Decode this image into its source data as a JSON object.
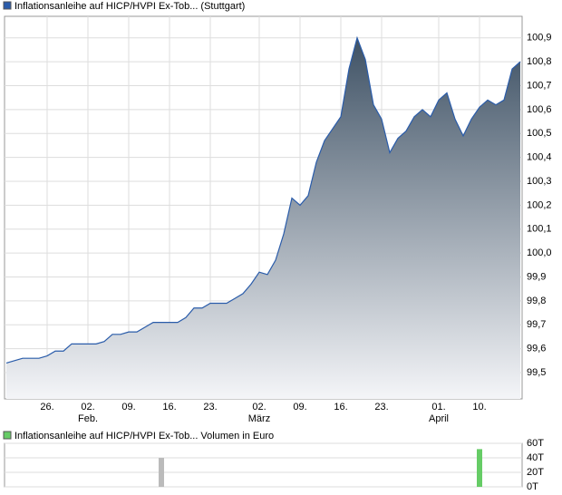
{
  "chart_data": [
    {
      "type": "area",
      "title": "Inflationsanleihe auf HICP/HVPI Ex-Tob... (Stuttgart)",
      "color": "#2a5caa",
      "categories": [
        null,
        null,
        null,
        null,
        null,
        "26.",
        null,
        null,
        null,
        null,
        "02.",
        null,
        null,
        null,
        null,
        "09.",
        null,
        null,
        null,
        null,
        "16.",
        null,
        null,
        null,
        null,
        "23.",
        null,
        null,
        null,
        null,
        null,
        "02.",
        null,
        null,
        null,
        null,
        "09.",
        null,
        null,
        null,
        null,
        "16.",
        null,
        null,
        null,
        null,
        "23.",
        null,
        null,
        null,
        null,
        null,
        null,
        "01.",
        null,
        null,
        null,
        null,
        "10.",
        null,
        null,
        null,
        null,
        null
      ],
      "month_labels": [
        null,
        null,
        null,
        null,
        null,
        null,
        null,
        null,
        null,
        null,
        "Feb.",
        null,
        null,
        null,
        null,
        null,
        null,
        null,
        null,
        null,
        null,
        null,
        null,
        null,
        null,
        null,
        null,
        null,
        null,
        null,
        null,
        "März",
        null,
        null,
        null,
        null,
        null,
        null,
        null,
        null,
        null,
        null,
        null,
        null,
        null,
        null,
        null,
        null,
        null,
        null,
        null,
        null,
        null,
        "April",
        null,
        null,
        null,
        null,
        null,
        null,
        null,
        null,
        null,
        null
      ],
      "values": [
        99.54,
        99.55,
        99.56,
        99.56,
        99.56,
        99.57,
        99.59,
        99.59,
        99.62,
        99.62,
        99.62,
        99.62,
        99.63,
        99.66,
        99.66,
        99.67,
        99.67,
        99.69,
        99.71,
        99.71,
        99.71,
        99.71,
        99.73,
        99.77,
        99.77,
        99.79,
        99.79,
        99.79,
        99.81,
        99.83,
        99.87,
        99.92,
        99.91,
        99.97,
        100.08,
        100.23,
        100.2,
        100.24,
        100.38,
        100.47,
        100.52,
        100.57,
        100.77,
        100.9,
        100.81,
        100.62,
        100.56,
        100.42,
        100.48,
        100.51,
        100.57,
        100.6,
        100.57,
        100.64,
        100.67,
        100.56,
        100.49,
        100.56,
        100.61,
        100.64,
        100.62,
        100.64,
        100.77,
        100.8
      ],
      "ylim": [
        99.39,
        100.99
      ],
      "yticks": [
        {
          "value": 99.5,
          "label": "99,5"
        },
        {
          "value": 99.6,
          "label": "99,6"
        },
        {
          "value": 99.7,
          "label": "99,7"
        },
        {
          "value": 99.8,
          "label": "99,8"
        },
        {
          "value": 99.9,
          "label": "99,9"
        },
        {
          "value": 100.0,
          "label": "100,0"
        },
        {
          "value": 100.1,
          "label": "100,1"
        },
        {
          "value": 100.2,
          "label": "100,2"
        },
        {
          "value": 100.3,
          "label": "100,3"
        },
        {
          "value": 100.4,
          "label": "100,4"
        },
        {
          "value": 100.5,
          "label": "100,5"
        },
        {
          "value": 100.6,
          "label": "100,6"
        },
        {
          "value": 100.7,
          "label": "100,7"
        },
        {
          "value": 100.8,
          "label": "100,8"
        },
        {
          "value": 100.9,
          "label": "100,9"
        }
      ],
      "grid": true
    },
    {
      "type": "bar",
      "title": "Inflationsanleihe auf HICP/HVPI Ex-Tob... Volumen in Euro",
      "color": "#66cc66",
      "values": [
        0,
        0,
        0,
        0,
        0,
        0,
        0,
        0,
        0,
        0,
        0,
        0,
        0,
        0,
        0,
        0,
        0,
        0,
        0,
        40,
        0,
        0,
        0,
        0,
        0,
        0,
        0,
        0,
        0,
        0,
        0,
        0,
        0,
        0,
        0,
        0,
        0,
        0,
        0,
        0,
        0,
        0,
        0,
        0,
        0,
        0,
        0,
        0,
        0,
        0,
        0,
        0,
        0,
        0,
        0,
        0,
        0,
        0,
        52,
        0,
        0,
        0,
        0,
        0
      ],
      "colors": [
        null,
        null,
        null,
        null,
        null,
        null,
        null,
        null,
        null,
        null,
        null,
        null,
        null,
        null,
        null,
        null,
        null,
        null,
        null,
        "#bbbbbb",
        null,
        null,
        null,
        null,
        null,
        null,
        null,
        null,
        null,
        null,
        null,
        null,
        null,
        null,
        null,
        null,
        null,
        null,
        null,
        null,
        null,
        null,
        null,
        null,
        null,
        null,
        null,
        null,
        null,
        null,
        null,
        null,
        null,
        null,
        null,
        null,
        null,
        null,
        "#66cc66",
        null,
        null,
        null,
        null,
        null
      ],
      "ylim": [
        0,
        60
      ],
      "yticks": [
        {
          "value": 0,
          "label": "0T"
        },
        {
          "value": 20,
          "label": "20T"
        },
        {
          "value": 40,
          "label": "40T"
        },
        {
          "value": 60,
          "label": "60T"
        }
      ],
      "grid": true
    }
  ]
}
